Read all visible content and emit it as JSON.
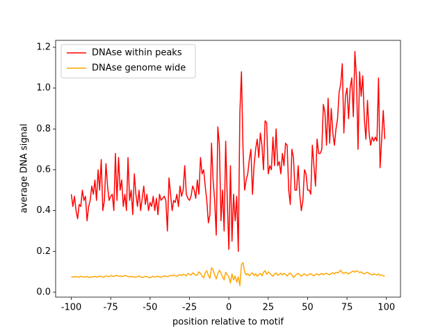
{
  "chart_data": {
    "type": "line",
    "xlabel": "position relative to motif",
    "ylabel": "average DNA signal",
    "xlim": [
      -109.95,
      108.95
    ],
    "ylim": [
      -0.024,
      1.234
    ],
    "xticks": [
      -100,
      -75,
      -50,
      -25,
      0,
      25,
      50,
      75,
      100
    ],
    "yticks": [
      {
        "value": 0,
        "label": "0.0"
      },
      0.2,
      0.4,
      0.6,
      0.8,
      {
        "value": 1,
        "label": "1.0"
      },
      1.2
    ],
    "legend": "upper left",
    "x": [
      -100,
      -99,
      -98,
      -97,
      -96,
      -95,
      -94,
      -93,
      -92,
      -91,
      -90,
      -89,
      -88,
      -87,
      -86,
      -85,
      -84,
      -83,
      -82,
      -81,
      -80,
      -79,
      -78,
      -77,
      -76,
      -75,
      -74,
      -73,
      -72,
      -71,
      -70,
      -69,
      -68,
      -67,
      -66,
      -65,
      -64,
      -63,
      -62,
      -61,
      -60,
      -59,
      -58,
      -57,
      -56,
      -55,
      -54,
      -53,
      -52,
      -51,
      -50,
      -49,
      -48,
      -47,
      -46,
      -45,
      -44,
      -43,
      -42,
      -41,
      -40,
      -39,
      -38,
      -37,
      -36,
      -35,
      -34,
      -33,
      -32,
      -31,
      -30,
      -29,
      -28,
      -27,
      -26,
      -25,
      -24,
      -23,
      -22,
      -21,
      -20,
      -19,
      -18,
      -17,
      -16,
      -15,
      -14,
      -13,
      -12,
      -11,
      -10,
      -9,
      -8,
      -7,
      -6,
      -5,
      -4,
      -3,
      -2,
      -1,
      0,
      1,
      2,
      3,
      4,
      5,
      6,
      7,
      8,
      9,
      10,
      11,
      12,
      13,
      14,
      15,
      16,
      17,
      18,
      19,
      20,
      21,
      22,
      23,
      24,
      25,
      26,
      27,
      28,
      29,
      30,
      31,
      32,
      33,
      34,
      35,
      36,
      37,
      38,
      39,
      40,
      41,
      42,
      43,
      44,
      45,
      46,
      47,
      48,
      49,
      50,
      51,
      52,
      53,
      54,
      55,
      56,
      57,
      58,
      59,
      60,
      61,
      62,
      63,
      64,
      65,
      66,
      67,
      68,
      69,
      70,
      71,
      72,
      73,
      74,
      75,
      76,
      77,
      78,
      79,
      80,
      81,
      82,
      83,
      84,
      85,
      86,
      87,
      88,
      89,
      90,
      91,
      92,
      93,
      94,
      95,
      96,
      97,
      98,
      99
    ],
    "series": [
      {
        "name": "DNAse within peaks",
        "color": "#ff0000",
        "values": [
          0.48,
          0.42,
          0.47,
          0.4,
          0.36,
          0.43,
          0.42,
          0.5,
          0.45,
          0.47,
          0.35,
          0.42,
          0.45,
          0.52,
          0.48,
          0.55,
          0.45,
          0.6,
          0.5,
          0.65,
          0.4,
          0.45,
          0.63,
          0.52,
          0.45,
          0.47,
          0.48,
          0.4,
          0.68,
          0.45,
          0.66,
          0.5,
          0.55,
          0.42,
          0.48,
          0.4,
          0.66,
          0.45,
          0.5,
          0.38,
          0.58,
          0.48,
          0.42,
          0.5,
          0.4,
          0.46,
          0.52,
          0.43,
          0.48,
          0.4,
          0.44,
          0.42,
          0.47,
          0.4,
          0.46,
          0.38,
          0.48,
          0.45,
          0.46,
          0.47,
          0.45,
          0.3,
          0.56,
          0.48,
          0.4,
          0.45,
          0.44,
          0.48,
          0.42,
          0.52,
          0.47,
          0.5,
          0.62,
          0.48,
          0.46,
          0.45,
          0.47,
          0.52,
          0.5,
          0.46,
          0.55,
          0.48,
          0.66,
          0.58,
          0.6,
          0.52,
          0.45,
          0.34,
          0.38,
          0.73,
          0.55,
          0.45,
          0.28,
          0.81,
          0.72,
          0.35,
          0.5,
          0.3,
          0.74,
          0.45,
          0.21,
          0.62,
          0.25,
          0.48,
          0.35,
          0.47,
          0.2,
          0.88,
          1.08,
          0.7,
          0.5,
          0.55,
          0.58,
          0.65,
          0.7,
          0.48,
          0.62,
          0.7,
          0.75,
          0.66,
          0.78,
          0.72,
          0.6,
          0.84,
          0.83,
          0.58,
          0.62,
          0.6,
          0.76,
          0.62,
          0.8,
          0.62,
          0.64,
          0.58,
          0.68,
          0.62,
          0.73,
          0.72,
          0.5,
          0.43,
          0.7,
          0.66,
          0.5,
          0.5,
          0.62,
          0.48,
          0.4,
          0.45,
          0.6,
          0.58,
          0.5,
          0.5,
          0.48,
          0.72,
          0.62,
          0.52,
          0.75,
          0.68,
          0.68,
          0.7,
          0.92,
          0.88,
          0.72,
          0.95,
          0.73,
          0.9,
          0.78,
          0.72,
          0.8,
          0.85,
          0.98,
          1.02,
          1.12,
          0.78,
          0.96,
          1.0,
          0.85,
          1.0,
          1.05,
          0.86,
          1.18,
          1.05,
          0.7,
          1.08,
          0.96,
          1.06,
          0.85,
          0.75,
          0.94,
          0.78,
          0.72,
          0.76,
          0.74,
          0.76,
          0.74,
          1.05,
          0.61,
          0.75,
          0.89,
          0.75
        ]
      },
      {
        "name": "DNAse genome wide",
        "color": "#ffa500",
        "values": [
          0.075,
          0.076,
          0.074,
          0.077,
          0.075,
          0.073,
          0.078,
          0.076,
          0.074,
          0.075,
          0.077,
          0.074,
          0.072,
          0.076,
          0.075,
          0.078,
          0.074,
          0.076,
          0.079,
          0.077,
          0.073,
          0.075,
          0.08,
          0.078,
          0.076,
          0.082,
          0.079,
          0.077,
          0.081,
          0.083,
          0.078,
          0.08,
          0.076,
          0.079,
          0.082,
          0.08,
          0.077,
          0.075,
          0.078,
          0.074,
          0.076,
          0.073,
          0.077,
          0.079,
          0.075,
          0.072,
          0.074,
          0.078,
          0.076,
          0.073,
          0.071,
          0.075,
          0.078,
          0.074,
          0.076,
          0.079,
          0.075,
          0.073,
          0.077,
          0.08,
          0.078,
          0.076,
          0.079,
          0.082,
          0.08,
          0.084,
          0.081,
          0.078,
          0.083,
          0.086,
          0.082,
          0.088,
          0.085,
          0.08,
          0.092,
          0.088,
          0.084,
          0.095,
          0.09,
          0.082,
          0.085,
          0.1,
          0.092,
          0.08,
          0.07,
          0.095,
          0.105,
          0.082,
          0.068,
          0.12,
          0.11,
          0.085,
          0.065,
          0.09,
          0.108,
          0.095,
          0.075,
          0.06,
          0.098,
          0.085,
          0.075,
          0.045,
          0.09,
          0.06,
          0.08,
          0.05,
          0.075,
          0.032,
          0.135,
          0.145,
          0.1,
          0.085,
          0.092,
          0.08,
          0.088,
          0.095,
          0.082,
          0.09,
          0.078,
          0.086,
          0.092,
          0.08,
          0.098,
          0.106,
          0.088,
          0.1,
          0.092,
          0.085,
          0.078,
          0.09,
          0.095,
          0.082,
          0.088,
          0.093,
          0.085,
          0.092,
          0.087,
          0.08,
          0.09,
          0.094,
          0.085,
          0.072,
          0.08,
          0.088,
          0.092,
          0.085,
          0.078,
          0.086,
          0.09,
          0.083,
          0.082,
          0.088,
          0.091,
          0.085,
          0.08,
          0.087,
          0.09,
          0.084,
          0.088,
          0.092,
          0.086,
          0.09,
          0.093,
          0.088,
          0.085,
          0.092,
          0.096,
          0.09,
          0.098,
          0.094,
          0.1,
          0.108,
          0.096,
          0.092,
          0.098,
          0.094,
          0.09,
          0.095,
          0.1,
          0.104,
          0.098,
          0.106,
          0.102,
          0.096,
          0.1,
          0.093,
          0.09,
          0.094,
          0.098,
          0.092,
          0.088,
          0.085,
          0.09,
          0.087,
          0.084,
          0.09,
          0.082,
          0.085,
          0.08,
          0.078
        ]
      }
    ]
  }
}
